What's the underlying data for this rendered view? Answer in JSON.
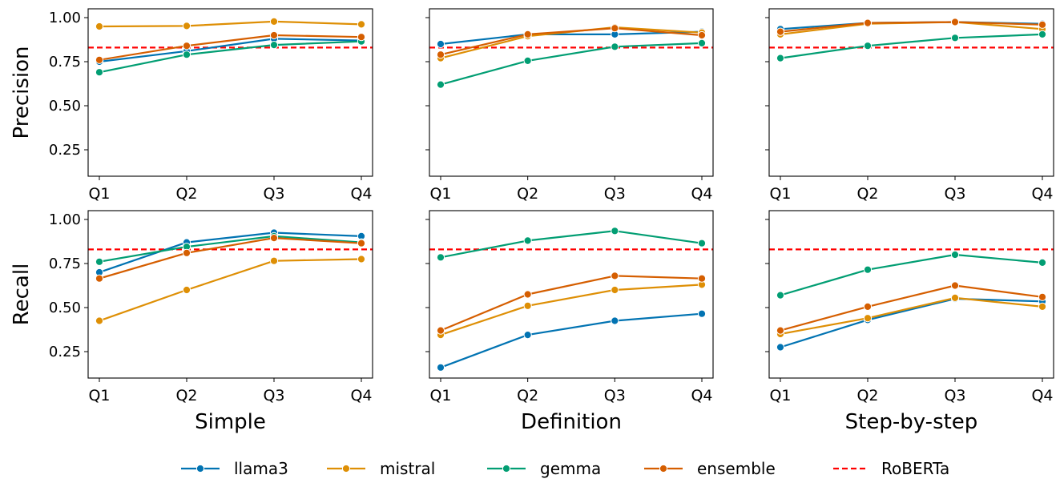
{
  "chart_data": {
    "type": "line",
    "rows": [
      "Precision",
      "Recall"
    ],
    "columns": [
      "Simple",
      "Definition",
      "Step-by-step"
    ],
    "categories": [
      "Q1",
      "Q2",
      "Q3",
      "Q4"
    ],
    "ylim": [
      0.1,
      1.05
    ],
    "yticks": [
      0.25,
      0.5,
      0.75,
      1.0
    ],
    "ytick_labels": [
      "0.25",
      "0.50",
      "0.75",
      "1.00"
    ],
    "grid": false,
    "legend_position": "bottom-center",
    "reference_line": {
      "name": "RoBERTa",
      "value": 0.83,
      "color": "#ff0000",
      "style": "dashed"
    },
    "series_meta": [
      {
        "name": "llama3",
        "color": "#0173b2"
      },
      {
        "name": "mistral",
        "color": "#de8f05"
      },
      {
        "name": "gemma",
        "color": "#029e73"
      },
      {
        "name": "ensemble",
        "color": "#d55e00"
      }
    ],
    "panels": [
      {
        "row": "Precision",
        "column": "Simple",
        "series": [
          {
            "name": "llama3",
            "values": [
              0.75,
              0.81,
              0.88,
              0.87
            ]
          },
          {
            "name": "mistral",
            "values": [
              0.95,
              0.953,
              0.978,
              0.962
            ]
          },
          {
            "name": "gemma",
            "values": [
              0.69,
              0.79,
              0.845,
              0.865
            ]
          },
          {
            "name": "ensemble",
            "values": [
              0.76,
              0.84,
              0.9,
              0.89
            ]
          }
        ]
      },
      {
        "row": "Precision",
        "column": "Definition",
        "series": [
          {
            "name": "llama3",
            "values": [
              0.85,
              0.905,
              0.905,
              0.92
            ]
          },
          {
            "name": "mistral",
            "values": [
              0.77,
              0.895,
              0.945,
              0.915
            ]
          },
          {
            "name": "gemma",
            "values": [
              0.62,
              0.755,
              0.835,
              0.855
            ]
          },
          {
            "name": "ensemble",
            "values": [
              0.79,
              0.905,
              0.94,
              0.9
            ]
          }
        ]
      },
      {
        "row": "Precision",
        "column": "Step-by-step",
        "series": [
          {
            "name": "llama3",
            "values": [
              0.935,
              0.97,
              0.975,
              0.965
            ]
          },
          {
            "name": "mistral",
            "values": [
              0.905,
              0.965,
              0.975,
              0.935
            ]
          },
          {
            "name": "gemma",
            "values": [
              0.77,
              0.84,
              0.885,
              0.905
            ]
          },
          {
            "name": "ensemble",
            "values": [
              0.92,
              0.97,
              0.975,
              0.96
            ]
          }
        ]
      },
      {
        "row": "Recall",
        "column": "Simple",
        "series": [
          {
            "name": "llama3",
            "values": [
              0.7,
              0.87,
              0.925,
              0.905
            ]
          },
          {
            "name": "mistral",
            "values": [
              0.425,
              0.6,
              0.765,
              0.775
            ]
          },
          {
            "name": "gemma",
            "values": [
              0.76,
              0.845,
              0.905,
              0.87
            ]
          },
          {
            "name": "ensemble",
            "values": [
              0.665,
              0.81,
              0.895,
              0.865
            ]
          }
        ]
      },
      {
        "row": "Recall",
        "column": "Definition",
        "series": [
          {
            "name": "llama3",
            "values": [
              0.16,
              0.345,
              0.425,
              0.465
            ]
          },
          {
            "name": "mistral",
            "values": [
              0.345,
              0.51,
              0.6,
              0.63
            ]
          },
          {
            "name": "gemma",
            "values": [
              0.785,
              0.88,
              0.935,
              0.865
            ]
          },
          {
            "name": "ensemble",
            "values": [
              0.37,
              0.575,
              0.68,
              0.665
            ]
          }
        ]
      },
      {
        "row": "Recall",
        "column": "Step-by-step",
        "series": [
          {
            "name": "llama3",
            "values": [
              0.275,
              0.43,
              0.55,
              0.535
            ]
          },
          {
            "name": "mistral",
            "values": [
              0.35,
              0.44,
              0.555,
              0.505
            ]
          },
          {
            "name": "gemma",
            "values": [
              0.57,
              0.715,
              0.8,
              0.755
            ]
          },
          {
            "name": "ensemble",
            "values": [
              0.37,
              0.505,
              0.625,
              0.56
            ]
          }
        ]
      }
    ]
  }
}
